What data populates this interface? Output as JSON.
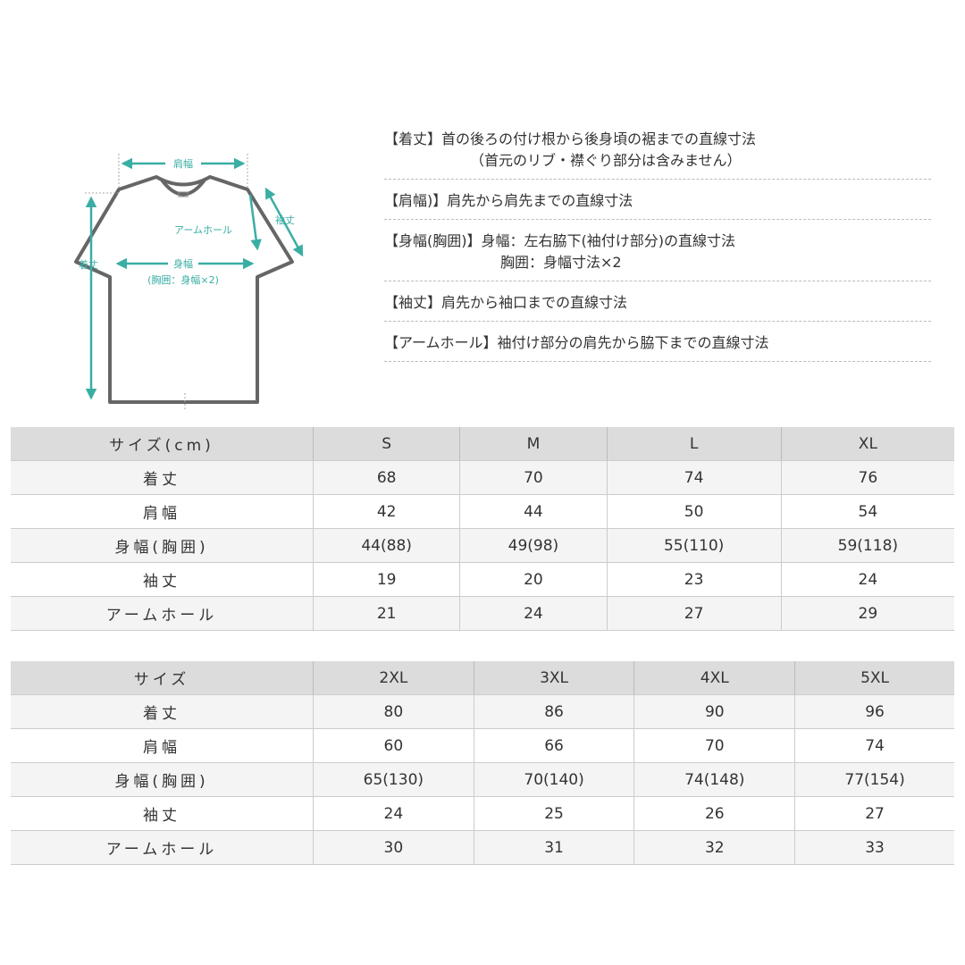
{
  "diagram": {
    "labels": {
      "shoulder": "肩幅",
      "length": "着丈",
      "sleeve": "袖丈",
      "armhole": "アームホール",
      "chest": "身幅",
      "chest_sub": "(胸囲：身幅×2)"
    },
    "accent_color": "#3aaea4"
  },
  "notes": [
    {
      "line1": "【着丈】首の後ろの付け根から後身頃の裾までの直線寸法",
      "line2": "（首元のリブ・襟ぐり部分は含みません）"
    },
    {
      "line1": "【肩幅)】肩先から肩先までの直線寸法",
      "line2": ""
    },
    {
      "line1": "【身幅(胸囲)】身幅：左右脇下(袖付け部分)の直線寸法",
      "line2": "胸囲：身幅寸法×2"
    },
    {
      "line1": "【袖丈】肩先から袖口までの直線寸法",
      "line2": ""
    },
    {
      "line1": "【アームホール】袖付け部分の肩先から脇下までの直線寸法",
      "line2": ""
    }
  ],
  "table1": {
    "header": [
      "サイズ(cm)",
      "S",
      "M",
      "L",
      "XL"
    ],
    "rows": [
      [
        "着丈",
        "68",
        "70",
        "74",
        "76"
      ],
      [
        "肩幅",
        "42",
        "44",
        "50",
        "54"
      ],
      [
        "身幅(胸囲)",
        "44(88)",
        "49(98)",
        "55(110)",
        "59(118)"
      ],
      [
        "袖丈",
        "19",
        "20",
        "23",
        "24"
      ],
      [
        "アームホール",
        "21",
        "24",
        "27",
        "29"
      ]
    ]
  },
  "table2": {
    "header": [
      "サイズ",
      "2XL",
      "3XL",
      "4XL",
      "5XL"
    ],
    "rows": [
      [
        "着丈",
        "80",
        "86",
        "90",
        "96"
      ],
      [
        "肩幅",
        "60",
        "66",
        "70",
        "74"
      ],
      [
        "身幅(胸囲)",
        "65(130)",
        "70(140)",
        "74(148)",
        "77(154)"
      ],
      [
        "袖丈",
        "24",
        "25",
        "26",
        "27"
      ],
      [
        "アームホール",
        "30",
        "31",
        "32",
        "33"
      ]
    ]
  }
}
